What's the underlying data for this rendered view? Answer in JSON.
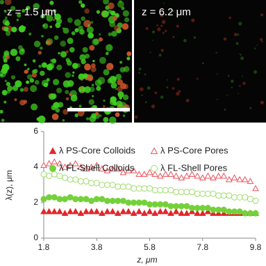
{
  "panels": [
    {
      "label": "z = 1.5 μm"
    },
    {
      "label": "z = 6.2 μm"
    }
  ],
  "chart_data": {
    "type": "scatter",
    "x": [
      1.8,
      2.0,
      2.2,
      2.4,
      2.6,
      2.8,
      3.0,
      3.2,
      3.4,
      3.6,
      3.8,
      4.0,
      4.2,
      4.4,
      4.6,
      4.8,
      5.0,
      5.2,
      5.4,
      5.6,
      5.8,
      6.0,
      6.2,
      6.4,
      6.6,
      6.8,
      7.0,
      7.2,
      7.4,
      7.6,
      7.8,
      8.0,
      8.2,
      8.4,
      8.6,
      8.8,
      9.0,
      9.2,
      9.4,
      9.6,
      9.8
    ],
    "series": [
      {
        "name": "λ PS-Core Colloids",
        "color": "#e3262b",
        "marker": "triangle",
        "filled": true,
        "values": [
          1.5,
          1.5,
          1.5,
          1.5,
          1.4,
          1.5,
          1.5,
          1.4,
          1.5,
          1.5,
          1.5,
          1.4,
          1.5,
          1.5,
          1.4,
          1.5,
          1.5,
          1.4,
          1.5,
          1.4,
          1.5,
          1.4,
          1.5,
          1.5,
          1.4,
          1.5,
          1.4,
          1.4,
          1.5,
          1.4,
          1.4,
          1.5,
          1.4,
          1.4,
          1.4,
          1.4,
          1.4,
          1.4,
          1.4,
          1.4,
          1.4
        ]
      },
      {
        "name": "λ PS-Core Pores",
        "color": "#e8505a",
        "marker": "triangle",
        "filled": false,
        "values": [
          4.1,
          4.2,
          4.3,
          4.2,
          4.0,
          4.1,
          4.2,
          4.0,
          3.9,
          4.0,
          4.1,
          3.9,
          3.8,
          3.9,
          3.9,
          3.7,
          3.8,
          3.8,
          3.6,
          3.6,
          3.7,
          3.6,
          3.5,
          3.6,
          3.6,
          3.5,
          3.4,
          3.5,
          3.6,
          3.5,
          3.4,
          3.5,
          3.4,
          3.5,
          3.5,
          3.3,
          3.4,
          3.3,
          3.3,
          3.2,
          2.8
        ]
      },
      {
        "name": "λ FL-Shell Colloids",
        "color": "#74d13a",
        "marker": "circle",
        "filled": true,
        "values": [
          2.2,
          2.3,
          2.3,
          2.2,
          2.2,
          2.3,
          2.2,
          2.2,
          2.2,
          2.1,
          2.2,
          2.2,
          2.1,
          2.1,
          2.1,
          2.1,
          2.0,
          2.0,
          2.0,
          2.0,
          1.9,
          1.9,
          1.9,
          1.9,
          1.8,
          1.8,
          1.8,
          1.8,
          1.7,
          1.7,
          1.7,
          1.7,
          1.6,
          1.6,
          1.6,
          1.5,
          1.5,
          1.5,
          1.4,
          1.4,
          1.4
        ]
      },
      {
        "name": "λ FL-Shell Pores",
        "color": "#9fdc6a",
        "marker": "circle",
        "filled": false,
        "values": [
          3.6,
          3.5,
          3.6,
          3.5,
          3.4,
          3.3,
          3.3,
          3.2,
          3.2,
          3.1,
          3.1,
          3.0,
          3.0,
          3.0,
          2.9,
          2.9,
          2.9,
          2.8,
          2.8,
          2.8,
          2.8,
          2.7,
          2.7,
          2.7,
          2.7,
          2.6,
          2.6,
          2.6,
          2.6,
          2.5,
          2.5,
          2.5,
          2.5,
          2.4,
          2.4,
          2.4,
          2.3,
          2.3,
          2.3,
          2.2,
          2.1
        ]
      }
    ],
    "xlabel": "z, μm",
    "ylabel": "λ(z), μm",
    "xlim": [
      1.8,
      9.8
    ],
    "xticks": [
      1.8,
      3.8,
      5.8,
      7.8,
      9.8
    ],
    "ylim": [
      0,
      6
    ],
    "yticks": [
      0,
      2,
      4,
      6
    ]
  }
}
